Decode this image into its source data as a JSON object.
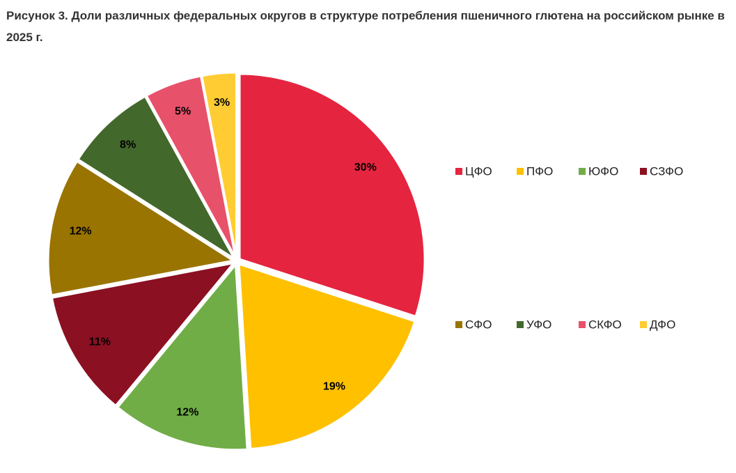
{
  "chart_data": {
    "type": "pie",
    "title": "Рисунок 3. Доли различных федеральных округов в структуре потребления пшеничного глютена на российском рынке в 2025 г.",
    "categories": [
      "ЦФО",
      "ПФО",
      "ЮФО",
      "СЗФО",
      "СФО",
      "УФО",
      "СКФО",
      "ДФО"
    ],
    "values": [
      30,
      19,
      12,
      11,
      12,
      8,
      5,
      3
    ],
    "value_labels": [
      "30%",
      "19%",
      "12%",
      "11%",
      "12%",
      "8%",
      "5%",
      "3%"
    ],
    "colors": [
      "#e5243f",
      "#ffc000",
      "#70ad47",
      "#8b1022",
      "#9a7400",
      "#43682b",
      "#e8516a",
      "#ffcc33"
    ],
    "legend": "right"
  }
}
